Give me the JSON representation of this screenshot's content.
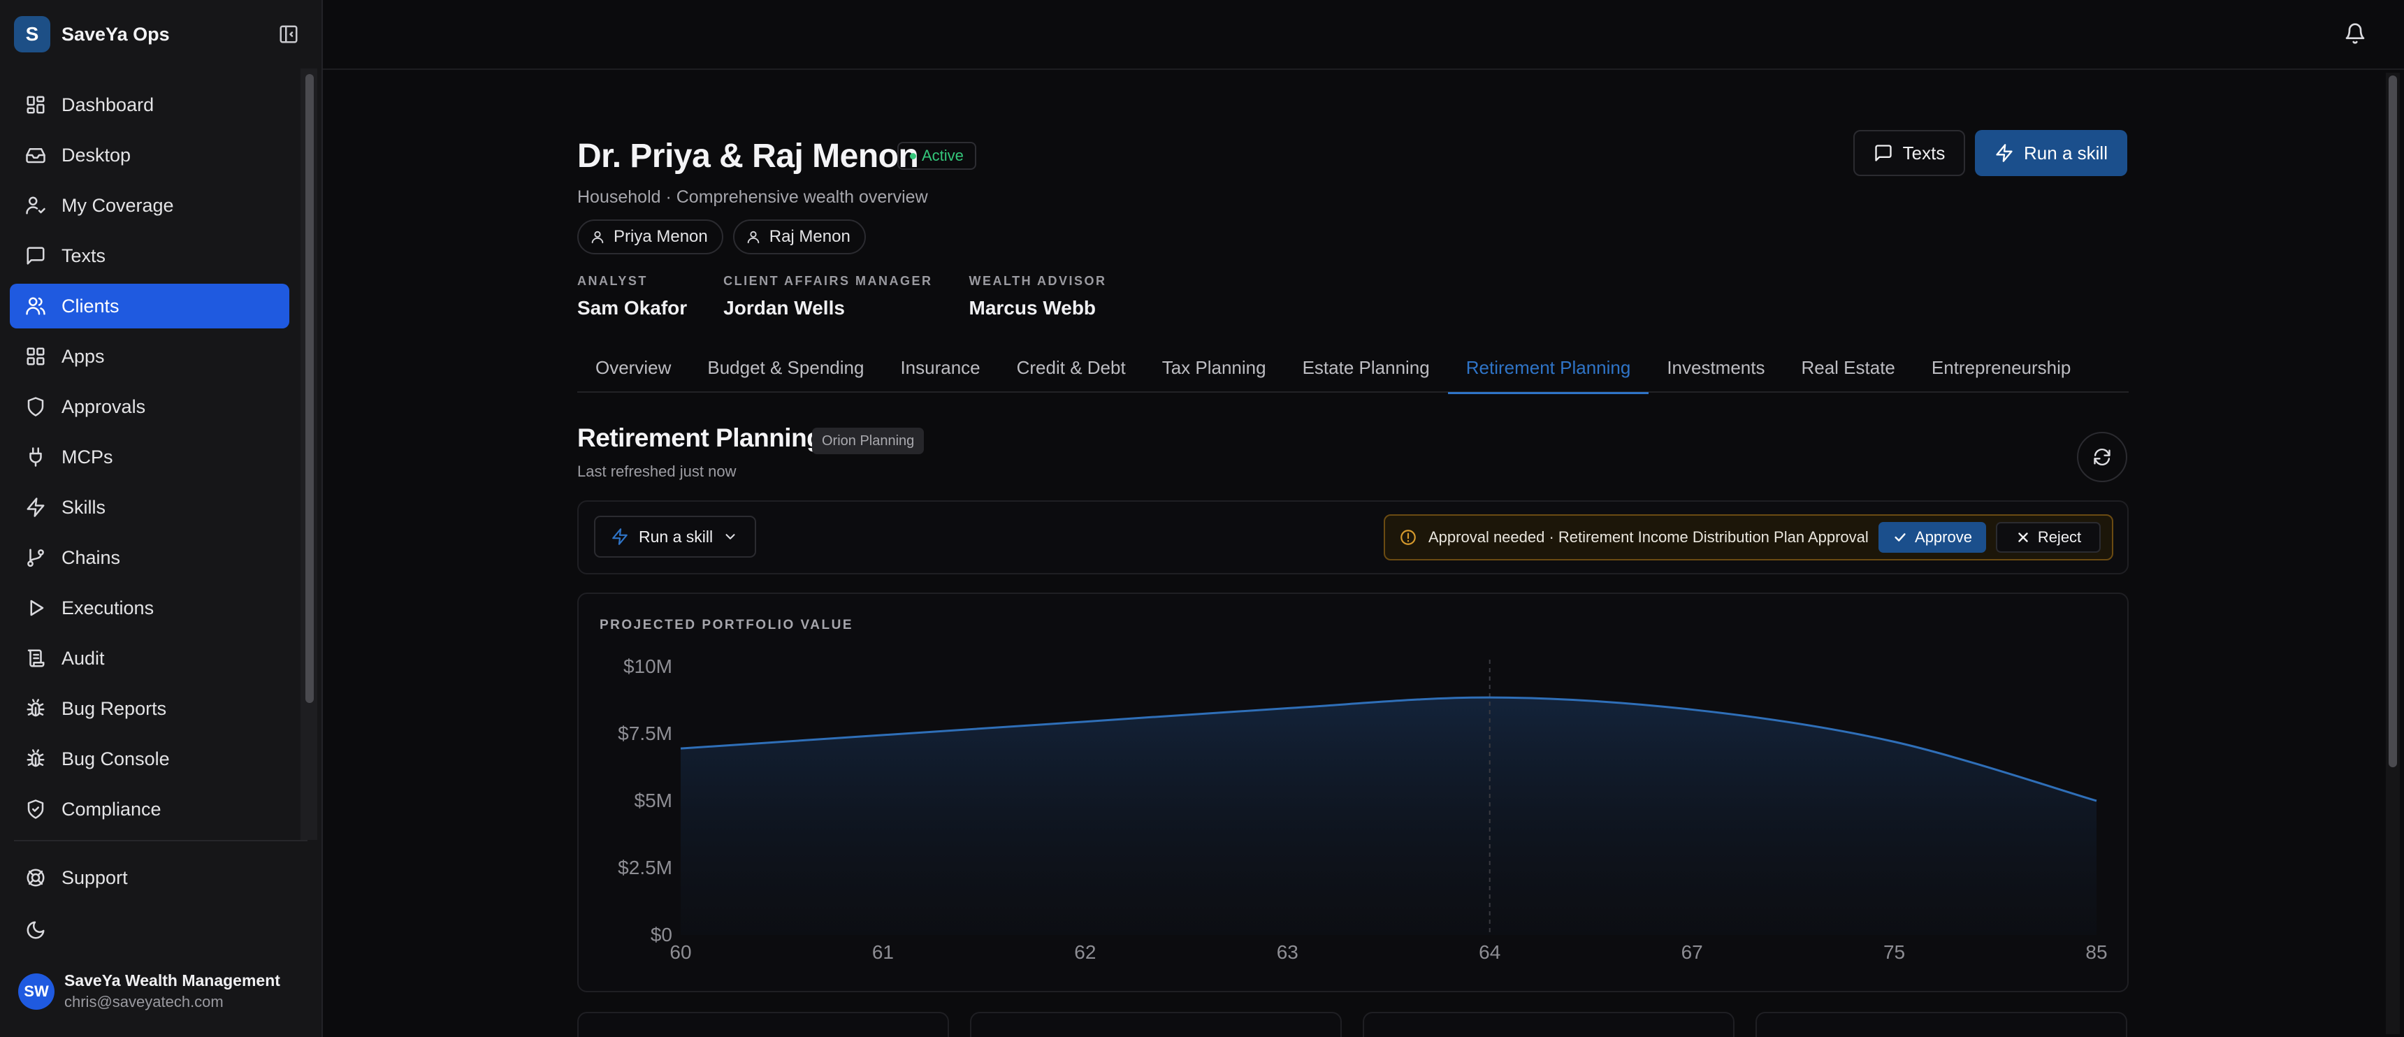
{
  "brand": {
    "initial": "S",
    "name": "SaveYa Ops"
  },
  "sidebar": {
    "items": [
      {
        "label": "Dashboard",
        "icon": "dashboard-icon"
      },
      {
        "label": "Desktop",
        "icon": "inbox-icon"
      },
      {
        "label": "My Coverage",
        "icon": "user-check-icon"
      },
      {
        "label": "Texts",
        "icon": "message-icon"
      },
      {
        "label": "Clients",
        "icon": "users-icon",
        "active": true
      },
      {
        "label": "Apps",
        "icon": "apps-grid-icon"
      },
      {
        "label": "Approvals",
        "icon": "shield-icon"
      },
      {
        "label": "MCPs",
        "icon": "plug-icon"
      },
      {
        "label": "Skills",
        "icon": "zap-icon"
      },
      {
        "label": "Chains",
        "icon": "git-branch-icon"
      },
      {
        "label": "Executions",
        "icon": "play-icon"
      },
      {
        "label": "Audit",
        "icon": "scroll-icon"
      },
      {
        "label": "Bug Reports",
        "icon": "bug-icon"
      },
      {
        "label": "Bug Console",
        "icon": "bug-icon"
      },
      {
        "label": "Compliance",
        "icon": "shield-check-icon"
      }
    ],
    "support": "Support",
    "user": {
      "initials": "SW",
      "name": "SaveYa Wealth Management",
      "email": "chris@saveyatech.com"
    }
  },
  "header": {
    "title": "Dr. Priya & Raj Menon",
    "status": "Active",
    "subtitle": "Household · Comprehensive wealth overview",
    "members": [
      "Priya Menon",
      "Raj Menon"
    ],
    "roles": [
      {
        "label": "ANALYST",
        "value": "Sam Okafor"
      },
      {
        "label": "CLIENT AFFAIRS MANAGER",
        "value": "Jordan Wells"
      },
      {
        "label": "WEALTH ADVISOR",
        "value": "Marcus Webb"
      }
    ],
    "texts_label": "Texts",
    "run_label": "Run a skill"
  },
  "tabs": [
    {
      "label": "Overview"
    },
    {
      "label": "Budget & Spending"
    },
    {
      "label": "Insurance"
    },
    {
      "label": "Credit & Debt"
    },
    {
      "label": "Tax Planning"
    },
    {
      "label": "Estate Planning"
    },
    {
      "label": "Retirement Planning",
      "active": true
    },
    {
      "label": "Investments"
    },
    {
      "label": "Real Estate"
    },
    {
      "label": "Entrepreneurship"
    }
  ],
  "section": {
    "title": "Retirement Planning",
    "badge": "Orion Planning",
    "subtitle": "Last refreshed just now",
    "skill_dropdown": "Run a skill",
    "approval_text": "Approval needed · Retirement Income Distribution Plan Approval",
    "approve_label": "Approve",
    "reject_label": "Reject"
  },
  "colors": {
    "accent": "#1f5ae0",
    "primary_button": "#1b4f8c",
    "active_tab": "#2f74c7",
    "status_green": "#34c77b",
    "warning": "#d69a2d",
    "line": "#2f6fb8"
  },
  "chart_data": {
    "type": "area",
    "title": "PROJECTED PORTFOLIO VALUE",
    "categories": [
      "60",
      "61",
      "62",
      "63",
      "64",
      "67",
      "75",
      "85"
    ],
    "series": [
      {
        "values": [
          6.95,
          7.45,
          7.95,
          8.45,
          8.85,
          8.4,
          7.2,
          5.0
        ]
      }
    ],
    "ylim": [
      0,
      10
    ],
    "yticks": [
      0,
      2.5,
      5,
      7.5,
      10
    ],
    "ytick_labels": [
      "$0",
      "$2.5M",
      "$5M",
      "$7.5M",
      "$10M"
    ],
    "highlight_category": "64",
    "grid": false
  }
}
